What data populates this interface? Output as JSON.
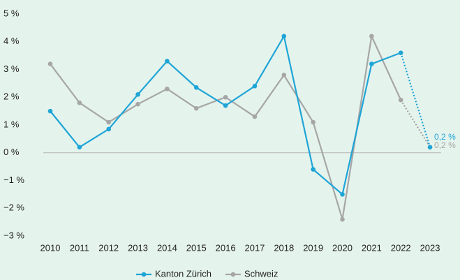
{
  "chart_data": {
    "type": "line",
    "categories": [
      "2010",
      "2011",
      "2012",
      "2013",
      "2014",
      "2015",
      "2016",
      "2017",
      "2018",
      "2019",
      "2020",
      "2021",
      "2022",
      "2023"
    ],
    "series": [
      {
        "name": "Kanton Zürich",
        "color": "#1ea5d6",
        "values": [
          1.5,
          0.2,
          0.85,
          2.1,
          3.3,
          2.35,
          1.7,
          2.4,
          4.2,
          -0.6,
          -1.5,
          3.2,
          3.6,
          0.2
        ],
        "value_labels": [
          null,
          null,
          null,
          null,
          null,
          null,
          null,
          null,
          null,
          null,
          null,
          null,
          null,
          "0,2 %"
        ]
      },
      {
        "name": "Schweiz",
        "color": "#a6a6a6",
        "values": [
          3.2,
          1.8,
          1.1,
          1.75,
          2.3,
          1.6,
          2.0,
          1.3,
          2.8,
          1.1,
          -2.4,
          4.2,
          1.9,
          0.2
        ],
        "value_labels": [
          null,
          null,
          null,
          null,
          null,
          null,
          null,
          null,
          null,
          null,
          null,
          null,
          null,
          "0,2 %"
        ]
      }
    ],
    "ylim": [
      -3,
      5
    ],
    "yticks": [
      {
        "value": 5,
        "label": "5 %"
      },
      {
        "value": 4,
        "label": "4 %"
      },
      {
        "value": 3,
        "label": "3 %"
      },
      {
        "value": 2,
        "label": "2 %"
      },
      {
        "value": 1,
        "label": "1 %"
      },
      {
        "value": 0,
        "label": "0 %"
      },
      {
        "value": -1,
        "label": "−1 %"
      },
      {
        "value": -2,
        "label": "−2 %"
      },
      {
        "value": -3,
        "label": "−3 %"
      }
    ],
    "zero_line": true,
    "dotted_last_segment": true,
    "legend": "bottom"
  }
}
